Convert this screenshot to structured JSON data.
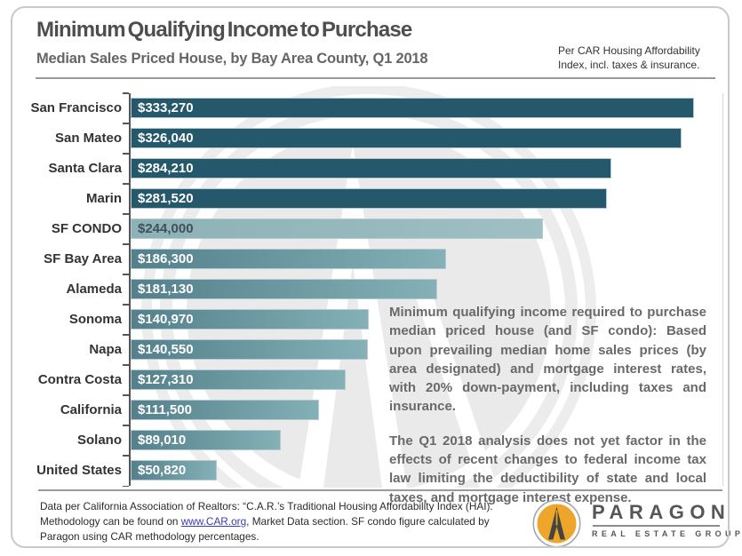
{
  "header": {
    "title": "Minimum Qualifying Income to Purchase",
    "subtitle": "Median Sales Priced House, by Bay Area County, Q1 2018",
    "note": "Per CAR Housing Affordability Index, incl. taxes & insurance."
  },
  "chart_data": {
    "type": "bar",
    "orientation": "horizontal",
    "title": "Minimum Qualifying Income to Purchase",
    "subtitle": "Median Sales Priced House, by Bay Area County, Q1 2018",
    "xlabel": "",
    "ylabel": "",
    "xlim": [
      0,
      350000
    ],
    "grid": false,
    "legend": false,
    "categories": [
      "San Francisco",
      "San Mateo",
      "Santa Clara",
      "Marin",
      "SF CONDO",
      "SF Bay Area",
      "Alameda",
      "Sonoma",
      "Napa",
      "Contra Costa",
      "California",
      "Solano",
      "United States"
    ],
    "values": [
      333270,
      326040,
      284210,
      281520,
      244000,
      186300,
      181130,
      140970,
      140550,
      127310,
      111500,
      89010,
      50820
    ],
    "value_labels": [
      "$333,270",
      "$326,040",
      "$284,210",
      "$281,520",
      "$244,000",
      "$186,300",
      "$181,130",
      "$140,970",
      "$140,550",
      "$127,310",
      "$111,500",
      "$89,010",
      "$50,820"
    ],
    "bar_styles": [
      "dark",
      "dark",
      "dark",
      "dark",
      "light",
      "mid",
      "mid",
      "mid",
      "mid",
      "mid",
      "mid",
      "mid",
      "mid"
    ],
    "colors": {
      "dark": "#24586A",
      "mid_start": "#54808C",
      "mid_end": "#84B0B6",
      "light_start": "#8CB1B7",
      "light_end": "#9FBFC3",
      "light_text": "#3E505A",
      "value_text": "#FFFFFF",
      "axis": "#555555"
    }
  },
  "annotation": {
    "para1": "Minimum qualifying income required to purchase median priced house (and SF condo): Based upon prevailing median home sales prices (by area designated) and mortgage interest rates, with 20% down-payment, including taxes and insurance.",
    "para2": "The Q1 2018 analysis does not yet factor in the effects of recent changes to federal income tax law limiting the deductibility of state and local taxes, and mortgage interest expense."
  },
  "footer": {
    "pre_link": "Data per California Association of Realtors: “C.A.R.’s Traditional Housing Affordability Index (HAI). Methodology can be found on ",
    "link_text": "www.CAR.org",
    "post_link": ",  Market Data section. SF condo figure calculated by Paragon using CAR methodology percentages."
  },
  "logo": {
    "wordmark": "PARAGON",
    "tagline": "REAL ESTATE GROUP",
    "gold": "#EDA62B"
  }
}
